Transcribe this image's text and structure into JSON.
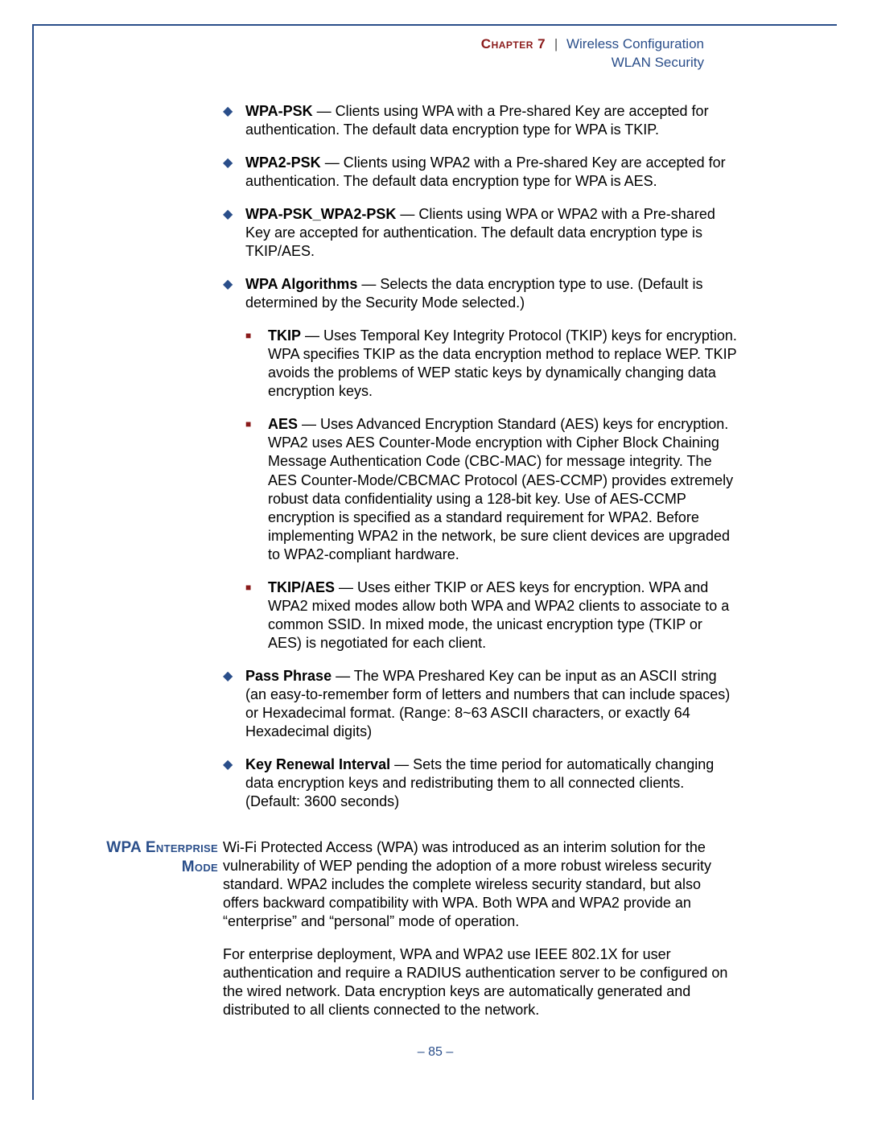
{
  "colors": {
    "border": "#2a4e8a",
    "accent_red": "#8a1a1a",
    "text": "#000000",
    "link_blue": "#2a4e8a",
    "background": "#ffffff"
  },
  "typography": {
    "body_fontsize_pt": 13,
    "header_fontsize_pt": 12,
    "section_label_fontsize_pt": 14,
    "line_height": 1.28
  },
  "header": {
    "chapter_label": "Chapter 7",
    "separator": "|",
    "chapter_title": "Wireless Configuration",
    "subtitle": "WLAN Security"
  },
  "bullets": [
    {
      "term": "WPA-PSK",
      "desc": " — Clients using WPA with a Pre-shared Key are accepted for authentication. The default data encryption type for WPA is TKIP."
    },
    {
      "term": "WPA2-PSK",
      "desc": " — Clients using WPA2 with a Pre-shared Key are accepted for authentication. The default data encryption type for WPA is AES."
    },
    {
      "term": "WPA-PSK_WPA2-PSK",
      "desc": " — Clients using WPA or WPA2 with a Pre-shared Key are accepted for authentication. The default data encryption type is TKIP/AES."
    },
    {
      "term": "WPA Algorithms",
      "desc": " — Selects the data encryption type to use. (Default is determined by the Security Mode selected.)",
      "subs": [
        {
          "term": "TKIP",
          "desc": " — Uses Temporal Key Integrity Protocol (TKIP) keys for encryption. WPA specifies TKIP as the data encryption method to replace WEP. TKIP avoids the problems of WEP static keys by dynamically changing data encryption keys."
        },
        {
          "term": "AES",
          "desc": " — Uses Advanced Encryption Standard (AES) keys for encryption. WPA2 uses AES Counter-Mode encryption with Cipher Block Chaining Message Authentication Code (CBC-MAC) for message integrity. The AES Counter-Mode/CBCMAC Protocol (AES-CCMP) provides extremely robust data confidentiality using a 128-bit key. Use of AES-CCMP encryption is specified as a standard requirement for WPA2. Before implementing WPA2 in the network, be sure client devices are upgraded to WPA2-compliant hardware."
        },
        {
          "term": "TKIP/AES",
          "desc": " — Uses either TKIP or AES keys for encryption. WPA and WPA2 mixed modes allow both WPA and WPA2 clients to associate to a common SSID. In mixed mode, the unicast encryption type (TKIP or AES) is negotiated for each client."
        }
      ]
    },
    {
      "term": "Pass Phrase",
      "desc": " — The WPA Preshared Key can be input as an ASCII string (an easy-to-remember form of letters and numbers that can include spaces) or Hexadecimal format. (Range: 8~63 ASCII characters, or exactly 64 Hexadecimal digits)"
    },
    {
      "term": "Key Renewal Interval",
      "desc": " — Sets the time period for automatically changing data encryption keys and redistributing them to all connected clients. (Default: 3600 seconds)"
    }
  ],
  "section": {
    "label_line1": "WPA Enterprise",
    "label_line2": "Mode",
    "para1": "Wi-Fi Protected Access (WPA) was introduced as an interim solution for the vulnerability of WEP pending the adoption of a more robust wireless security standard. WPA2 includes the complete wireless security standard, but also offers backward compatibility with WPA. Both WPA and WPA2 provide an “enterprise” and “personal” mode of operation.",
    "para2": "For enterprise deployment, WPA and WPA2 use IEEE 802.1X for user authentication and require a RADIUS authentication server to be configured on the wired network. Data encryption keys are automatically generated and distributed to all clients connected to the network."
  },
  "page_number": "–  85  –"
}
